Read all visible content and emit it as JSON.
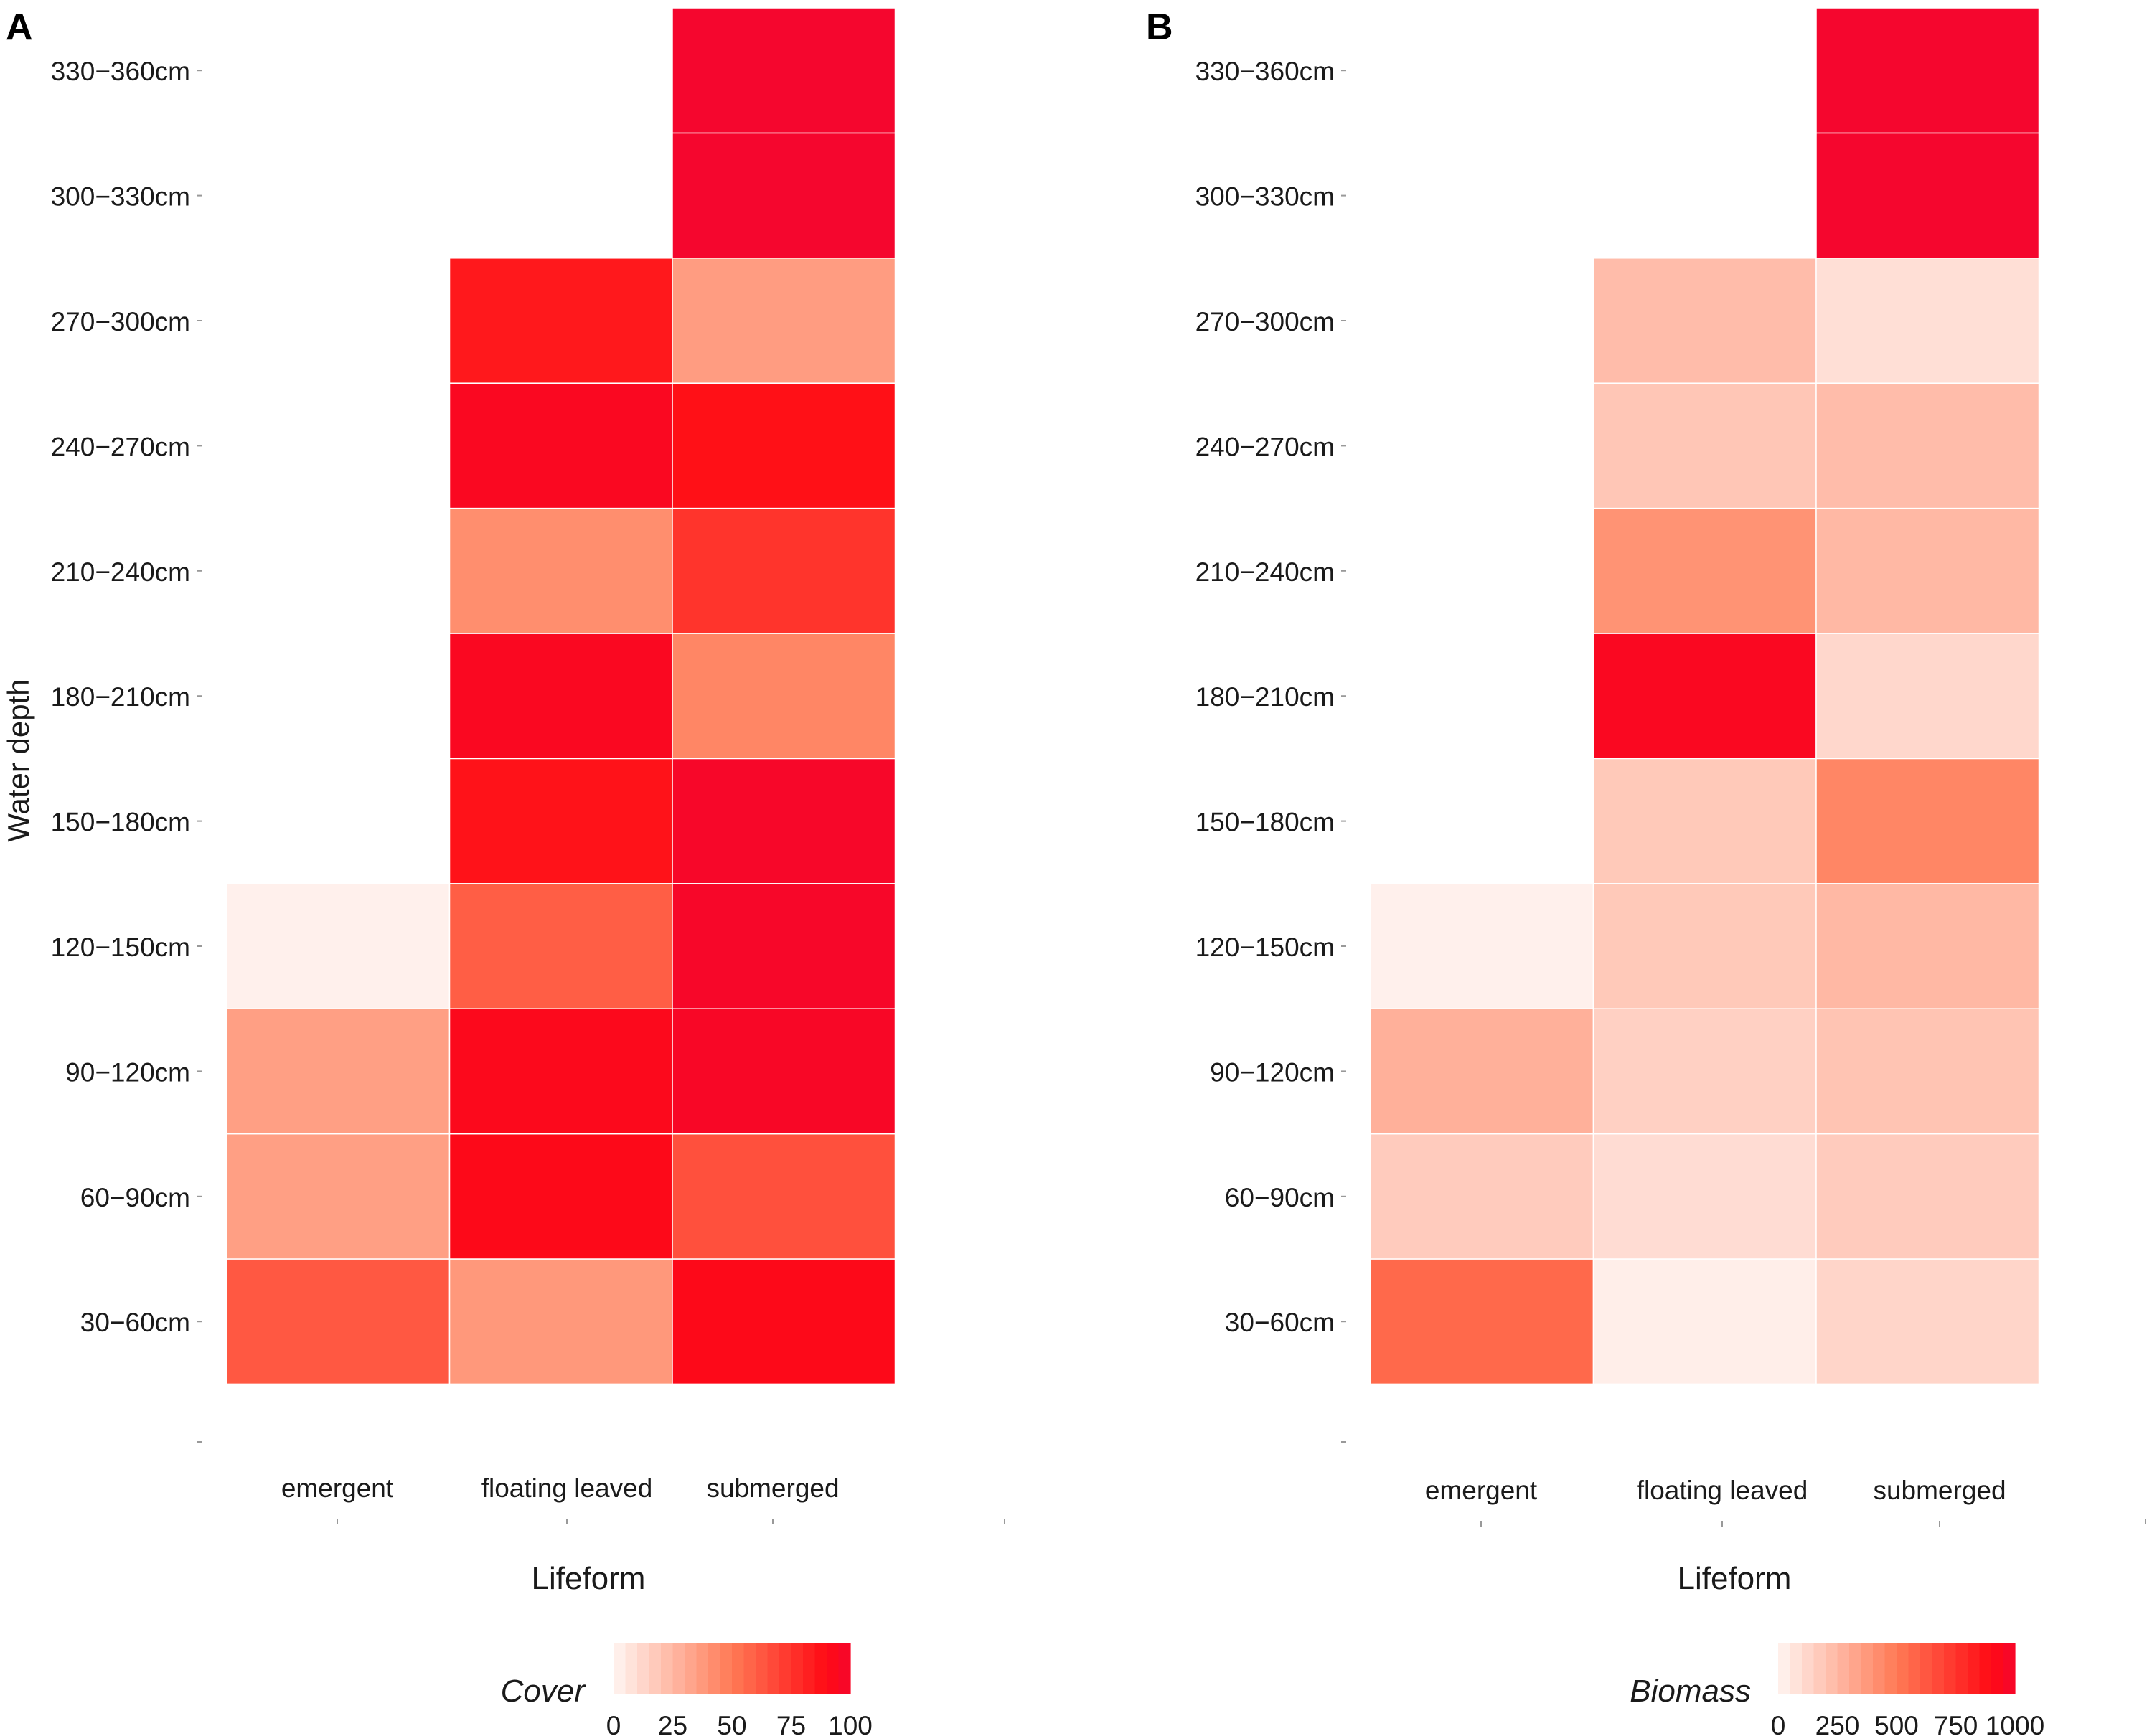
{
  "colors": {
    "low": "#fff5f2",
    "mid": "#ff7a55",
    "high": "#ff0a14",
    "max": "#f5062e",
    "empty": "#ffffff"
  },
  "chart_data": [
    {
      "panel": "A",
      "type": "heatmap",
      "xlabel": "Lifeform",
      "ylabel": "Water depth",
      "x_categories": [
        "emergent",
        "floating leaved",
        "submerged"
      ],
      "y_categories": [
        "30−60cm",
        "60−90cm",
        "90−120cm",
        "120−150cm",
        "150−180cm",
        "180−210cm",
        "210−240cm",
        "240−270cm",
        "270−300cm",
        "300−330cm",
        "330−360cm"
      ],
      "values": [
        [
          62,
          38,
          92
        ],
        [
          35,
          92,
          65
        ],
        [
          35,
          93,
          97
        ],
        [
          2,
          60,
          98
        ],
        [
          null,
          87,
          98
        ],
        [
          null,
          95,
          45
        ],
        [
          null,
          42,
          75
        ],
        [
          null,
          95,
          88
        ],
        [
          null,
          85,
          36
        ],
        [
          null,
          null,
          100
        ],
        [
          null,
          null,
          100
        ]
      ],
      "legend": {
        "title": "Cover",
        "range": [
          0,
          100
        ],
        "ticks": [
          "0",
          "25",
          "50",
          "75",
          "100"
        ],
        "position": "bottom"
      }
    },
    {
      "panel": "B",
      "type": "heatmap",
      "xlabel": "Lifeform",
      "ylabel": "",
      "x_categories": [
        "emergent",
        "floating leaved",
        "submerged"
      ],
      "y_categories": [
        "30−60cm",
        "60−90cm",
        "90−120cm",
        "120−150cm",
        "150−180cm",
        "180−210cm",
        "210−240cm",
        "240−270cm",
        "270−300cm",
        "300−330cm",
        "330−360cm"
      ],
      "values": [
        [
          560,
          30,
          130
        ],
        [
          170,
          100,
          170
        ],
        [
          280,
          150,
          200
        ],
        [
          20,
          180,
          250
        ],
        [
          null,
          180,
          450
        ],
        [
          null,
          950,
          120
        ],
        [
          null,
          400,
          250
        ],
        [
          null,
          190,
          230
        ],
        [
          null,
          230,
          90
        ],
        [
          null,
          null,
          1000
        ],
        [
          null,
          null,
          1000
        ]
      ],
      "legend": {
        "title": "Biomass",
        "range": [
          0,
          1000
        ],
        "ticks": [
          "0",
          "250",
          "500",
          "750",
          "1000"
        ],
        "position": "bottom"
      }
    }
  ]
}
